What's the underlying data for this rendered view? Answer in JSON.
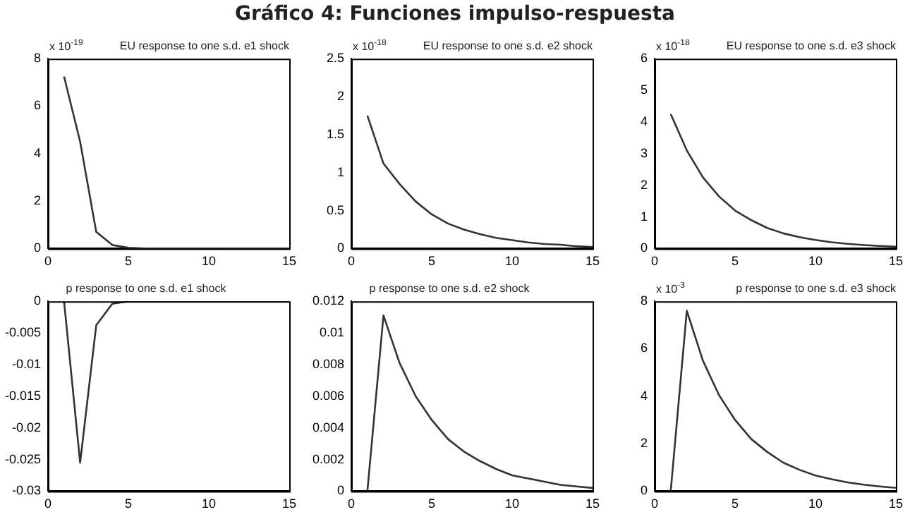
{
  "chart_data": [
    {
      "type": "line",
      "title": "EU response to one s.d. e1 shock",
      "ylabel": "x 10$^{-19}$",
      "annotations": [
        "Gráfico 4: Funciones impulso-respuesta"
      ],
      "x": [
        1,
        2,
        3,
        4,
        5,
        6,
        7,
        8,
        9,
        10,
        11,
        12,
        13,
        14,
        15
      ],
      "values": [
        7.25,
        4.5,
        0.7,
        0.15,
        0.03,
        0,
        0,
        0,
        0,
        0,
        0,
        0,
        0,
        0,
        0
      ],
      "color": "#333333",
      "xlim": [
        0,
        15
      ],
      "xticks": [
        0,
        5,
        10,
        15
      ],
      "ylim": [
        0,
        8
      ],
      "yticks": [
        0,
        2,
        4,
        6,
        8
      ],
      "grid": false
    },
    {
      "type": "line",
      "title": "EU response to one s.d. e2 shock",
      "ylabel": "x 10$^{-18}$",
      "x": [
        1,
        2,
        3,
        4,
        5,
        6,
        7,
        8,
        9,
        10,
        11,
        12,
        13,
        14,
        15
      ],
      "values": [
        1.75,
        1.12,
        0.85,
        0.62,
        0.45,
        0.33,
        0.25,
        0.19,
        0.14,
        0.11,
        0.08,
        0.06,
        0.05,
        0.03,
        0.02
      ],
      "color": "#333333",
      "xlim": [
        0,
        15
      ],
      "xticks": [
        0,
        5,
        10,
        15
      ],
      "ylim": [
        0,
        2.5
      ],
      "yticks": [
        0,
        0.5,
        1,
        1.5,
        2,
        2.5
      ],
      "grid": false
    },
    {
      "type": "line",
      "title": "EU response to one s.d. e3 shock",
      "ylabel": "x 10$^{-18}$",
      "x": [
        1,
        2,
        3,
        4,
        5,
        6,
        7,
        8,
        9,
        10,
        11,
        12,
        13,
        14,
        15
      ],
      "values": [
        4.25,
        3.1,
        2.25,
        1.65,
        1.2,
        0.9,
        0.65,
        0.48,
        0.36,
        0.27,
        0.2,
        0.15,
        0.11,
        0.08,
        0.06
      ],
      "color": "#333333",
      "xlim": [
        0,
        15
      ],
      "xticks": [
        0,
        5,
        10,
        15
      ],
      "ylim": [
        0,
        6
      ],
      "yticks": [
        0,
        1,
        2,
        3,
        4,
        5,
        6
      ],
      "grid": false
    },
    {
      "type": "line",
      "title": "p response to one s.d. e1 shock",
      "x": [
        1,
        2,
        3,
        4,
        5,
        6,
        7,
        8,
        9,
        10,
        11,
        12,
        13,
        14,
        15
      ],
      "values": [
        0,
        -0.0255,
        -0.0038,
        -0.0004,
        0,
        0,
        0,
        0,
        0,
        0,
        0,
        0,
        0,
        0,
        0
      ],
      "color": "#333333",
      "xlim": [
        0,
        15
      ],
      "xticks": [
        0,
        5,
        10,
        15
      ],
      "ylim": [
        -0.03,
        0
      ],
      "yticks": [
        -0.03,
        -0.025,
        -0.02,
        -0.015,
        -0.01,
        -0.005,
        0
      ],
      "grid": false
    },
    {
      "type": "line",
      "title": "p response to one s.d. e2 shock",
      "x": [
        1,
        2,
        3,
        4,
        5,
        6,
        7,
        8,
        9,
        10,
        11,
        12,
        13,
        14,
        15
      ],
      "values": [
        0,
        0.0111,
        0.0081,
        0.006,
        0.0045,
        0.0033,
        0.0025,
        0.0019,
        0.0014,
        0.001,
        0.0008,
        0.0006,
        0.0004,
        0.0003,
        0.0002
      ],
      "color": "#333333",
      "xlim": [
        0,
        15
      ],
      "xticks": [
        0,
        5,
        10,
        15
      ],
      "ylim": [
        0,
        0.012
      ],
      "yticks": [
        0,
        0.002,
        0.004,
        0.006,
        0.008,
        0.01,
        0.012
      ],
      "grid": false
    },
    {
      "type": "line",
      "title": "p response to one s.d. e3 shock",
      "ylabel": "x 10$^{-3}$",
      "x": [
        1,
        2,
        3,
        4,
        5,
        6,
        7,
        8,
        9,
        10,
        11,
        12,
        13,
        14,
        15
      ],
      "values": [
        0,
        7.6,
        5.5,
        4.05,
        3.0,
        2.2,
        1.65,
        1.2,
        0.9,
        0.66,
        0.5,
        0.37,
        0.27,
        0.2,
        0.14
      ],
      "color": "#333333",
      "xlim": [
        0,
        15
      ],
      "xticks": [
        0,
        5,
        10,
        15
      ],
      "ylim": [
        0,
        8
      ],
      "yticks": [
        0,
        2,
        4,
        6,
        8
      ],
      "grid": false
    }
  ]
}
